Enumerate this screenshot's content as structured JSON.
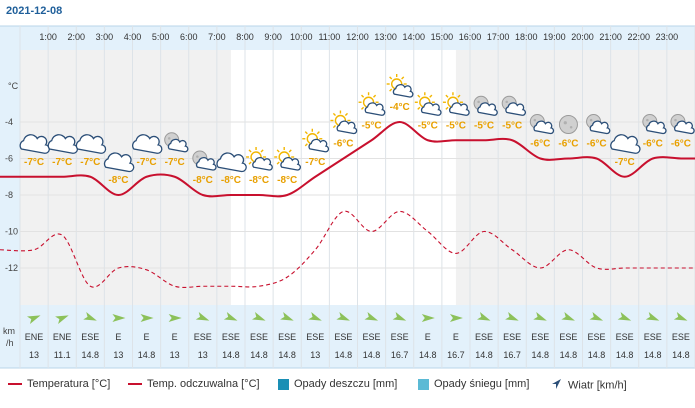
{
  "date": "2021-12-08",
  "chart_data": {
    "type": "line",
    "hours": [
      "1:00",
      "2:00",
      "3:00",
      "4:00",
      "5:00",
      "6:00",
      "7:00",
      "8:00",
      "9:00",
      "10:00",
      "11:00",
      "12:00",
      "13:00",
      "14:00",
      "15:00",
      "16:00",
      "17:00",
      "18:00",
      "19:00",
      "20:00",
      "21:00",
      "22:00",
      "23:00"
    ],
    "y_unit": "°C",
    "y_ticks": [
      -4,
      -6,
      -8,
      -10,
      -12
    ],
    "ylim": [
      -13.5,
      -2
    ],
    "grid": true,
    "series": [
      {
        "name": "Temperatura [°C]",
        "color": "#c8102e",
        "style": "solid",
        "x": [
          0.5,
          1.5,
          2.5,
          3.5,
          4.5,
          5.5,
          6.5,
          7.5,
          8.5,
          9.5,
          10.5,
          11.5,
          12.5,
          13.5,
          14.5,
          15.5,
          16.5,
          17.5,
          18.5,
          19.5,
          20.5,
          21.5,
          22.5,
          23.5
        ],
        "values": [
          -7,
          -7,
          -7,
          -8,
          -7,
          -7,
          -8,
          -8,
          -8,
          -8,
          -7,
          -6,
          -5,
          -4,
          -5,
          -5,
          -5,
          -5,
          -6,
          -6,
          -6,
          -7,
          -6,
          -6
        ]
      },
      {
        "name": "Temp. odczuwalna [°C]",
        "color": "#c8102e",
        "style": "dashed",
        "x": [
          0.5,
          1.5,
          2.5,
          3.5,
          4.5,
          5.5,
          6.5,
          7.5,
          8.5,
          9.5,
          10.5,
          11.5,
          12.5,
          13.5,
          14.5,
          15.5,
          16.5,
          17.5,
          18.5,
          19.5,
          20.5,
          21.5,
          22.5,
          23.5
        ],
        "values": [
          -11,
          -10.2,
          -13,
          -12,
          -12.1,
          -13,
          -13,
          -13,
          -13,
          -12.5,
          -11,
          -8.9,
          -10,
          -8.9,
          -10,
          -11.2,
          -10,
          -11,
          -12,
          -11,
          -12,
          -12,
          -12,
          -12
        ]
      }
    ],
    "temp_labels": [
      "-7°C",
      "-7°C",
      "-7°C",
      "-8°C",
      "-7°C",
      "-7°C",
      "-8°C",
      "-8°C",
      "-8°C",
      "-8°C",
      "-7°C",
      "-6°C",
      "-5°C",
      "-4°C",
      "-5°C",
      "-5°C",
      "-5°C",
      "-5°C",
      "-6°C",
      "-6°C",
      "-6°C",
      "-7°C",
      "-6°C",
      "-6°C"
    ],
    "weather_icons": [
      "cloud-icon",
      "cloud-icon",
      "cloud-icon",
      "cloud-icon",
      "cloud-icon",
      "moon-cloud-icon",
      "moon-cloud-icon",
      "cloud-icon",
      "sun-cloud-icon",
      "sun-cloud-icon",
      "sun-cloud-icon",
      "sun-cloud-icon",
      "sun-cloud-icon",
      "sun-cloud-icon",
      "sun-cloud-icon",
      "sun-cloud-icon",
      "moon-cloud-icon",
      "moon-cloud-icon",
      "moon-cloud-icon",
      "moon-icon",
      "moon-cloud-icon",
      "cloud-icon",
      "moon-cloud-icon",
      "moon-cloud-icon"
    ],
    "wind_unit": "km/h",
    "wind_directions": [
      "ENE",
      "ENE",
      "ESE",
      "E",
      "E",
      "E",
      "ESE",
      "ESE",
      "ESE",
      "ESE",
      "ESE",
      "ESE",
      "ESE",
      "ESE",
      "E",
      "E",
      "ESE",
      "ESE",
      "ESE",
      "ESE",
      "ESE",
      "ESE",
      "ESE",
      "ESE"
    ],
    "wind_speeds": [
      "13",
      "11.1",
      "14.8",
      "13",
      "14.8",
      "13",
      "13",
      "14.8",
      "14.8",
      "14.8",
      "13",
      "14.8",
      "14.8",
      "16.7",
      "14.8",
      "16.7",
      "14.8",
      "16.7",
      "14.8",
      "14.8",
      "14.8",
      "14.8",
      "14.8",
      "14.8"
    ],
    "legend": [
      {
        "label": "Temperatura [°C]",
        "kind": "line-solid",
        "color": "#c8102e"
      },
      {
        "label": "Temp. odczuwalna [°C]",
        "kind": "line-dashed",
        "color": "#c8102e"
      },
      {
        "label": "Opady deszczu [mm]",
        "kind": "box",
        "color": "#1a8fb5"
      },
      {
        "label": "Opady śniegu [mm]",
        "kind": "box",
        "color": "#5bbad5"
      },
      {
        "label": "Wiatr [km/h]",
        "kind": "arrow",
        "color": "#2c4f78"
      }
    ]
  },
  "colors": {
    "header_bg": "#e3f1fb",
    "wind_bg": "#e3f1fb",
    "night_bg": "#f1f1f1",
    "day_bg": "#ffffff",
    "line": "#c8102e",
    "label": "#e8a000",
    "axis_text": "#444444",
    "wind_arrow": "#8cc15a"
  }
}
